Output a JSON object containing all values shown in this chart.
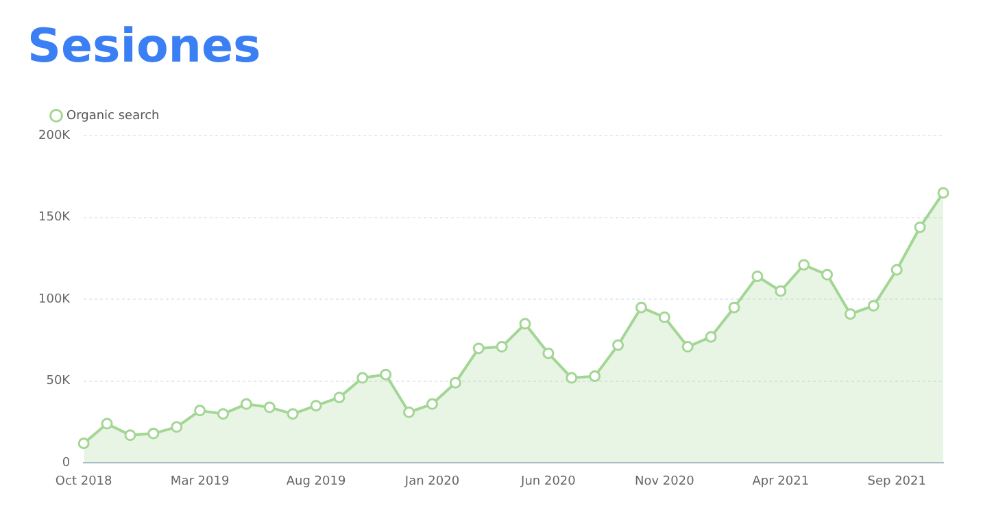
{
  "chart_data": {
    "type": "area",
    "title": "Sesiones",
    "categories": [
      "Oct 2018",
      null,
      null,
      null,
      null,
      "Mar 2019",
      null,
      null,
      null,
      null,
      "Aug 2019",
      null,
      null,
      null,
      null,
      "Jan 2020",
      null,
      null,
      null,
      null,
      "Jun 2020",
      null,
      null,
      null,
      null,
      "Nov 2020",
      null,
      null,
      null,
      null,
      "Apr 2021",
      null,
      null,
      null,
      null,
      "Sep 2021",
      null,
      null
    ],
    "series": [
      {
        "name": "Organic search",
        "color": "#a3d694",
        "values": [
          12000,
          24000,
          17000,
          18000,
          22000,
          32000,
          30000,
          36000,
          34000,
          30000,
          35000,
          40000,
          52000,
          54000,
          31000,
          36000,
          49000,
          70000,
          71000,
          85000,
          67000,
          52000,
          53000,
          72000,
          95000,
          89000,
          71000,
          77000,
          95000,
          114000,
          105000,
          121000,
          115000,
          91000,
          96000,
          118000,
          144000,
          165000
        ]
      }
    ],
    "ylim": [
      0,
      200000
    ],
    "yticks": [
      {
        "value": 0,
        "label": "0"
      },
      {
        "value": 50000,
        "label": "50K"
      },
      {
        "value": 100000,
        "label": "100K"
      },
      {
        "value": 150000,
        "label": "150K"
      },
      {
        "value": 200000,
        "label": "200K"
      }
    ],
    "grid": "y",
    "legend": "top left",
    "marker": "circle"
  }
}
